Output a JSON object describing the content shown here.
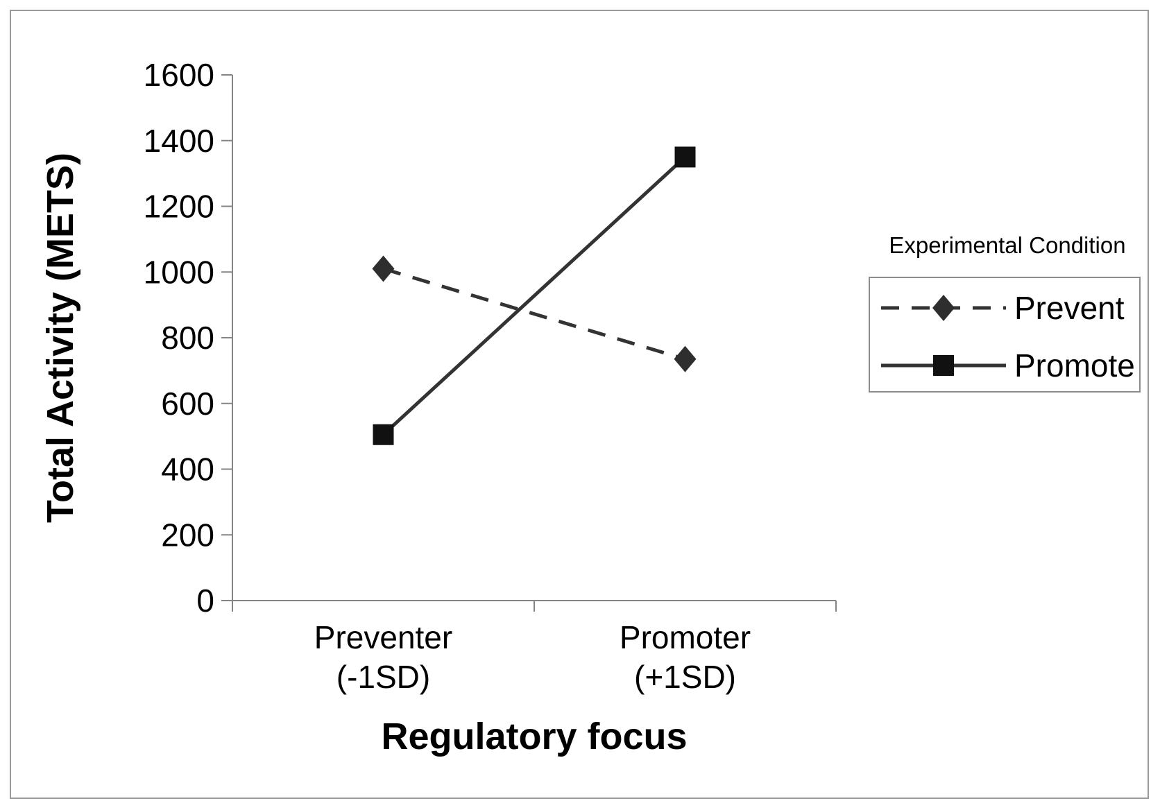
{
  "chart_data": {
    "type": "line",
    "title": "",
    "xlabel": "Regulatory focus",
    "ylabel": "Total Activity (METS)",
    "ylim": [
      0,
      1600
    ],
    "ytick_step": 200,
    "ytick_labels": [
      "0",
      "200",
      "400",
      "600",
      "800",
      "1000",
      "1200",
      "1400",
      "1600"
    ],
    "grid": false,
    "categories": [
      {
        "line1": "Preventer",
        "line2": "(-1SD)"
      },
      {
        "line1": "Promoter",
        "line2": "(+1SD)"
      }
    ],
    "series": [
      {
        "name": "Prevent",
        "values": [
          1010,
          735
        ],
        "line_style": "dashed",
        "marker": "diamond",
        "line_color": "#333333",
        "marker_color": "#2e2e2e"
      },
      {
        "name": "Promote",
        "values": [
          505,
          1350
        ],
        "line_style": "solid",
        "marker": "square",
        "line_color": "#333333",
        "marker_color": "#111111"
      }
    ],
    "legend": {
      "title": "Experimental Condition",
      "position": "right",
      "entries": [
        "Prevent",
        "Promote"
      ]
    },
    "axis_color": "#858585",
    "text_color": "#000000"
  }
}
